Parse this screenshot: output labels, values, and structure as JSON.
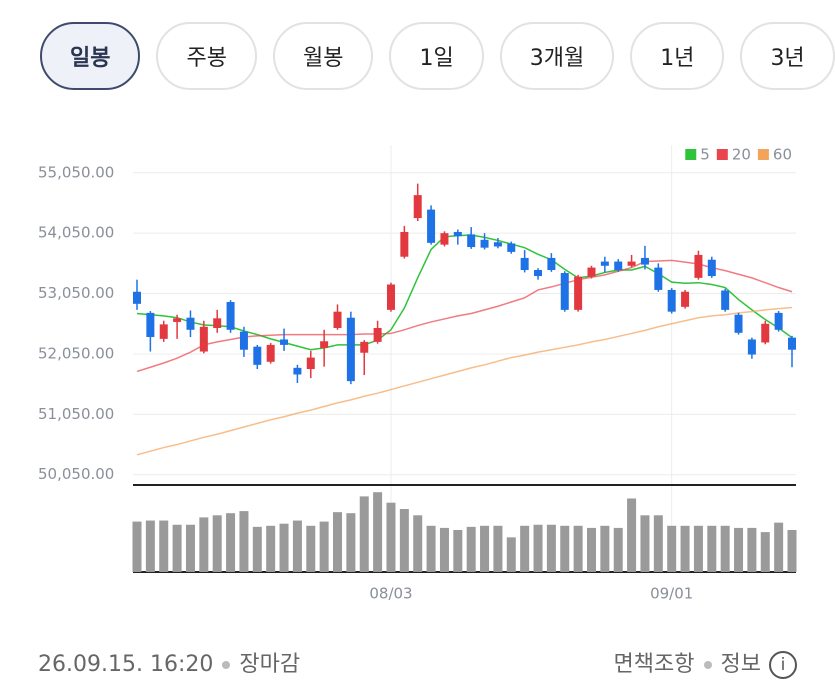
{
  "tabs": [
    {
      "label": "일봉",
      "selected": true
    },
    {
      "label": "주봉"
    },
    {
      "label": "월봉"
    },
    {
      "label": "1일"
    },
    {
      "label": "3개월"
    },
    {
      "label": "1년"
    },
    {
      "label": "3년"
    }
  ],
  "chart_data": {
    "type": "candlestick",
    "categories": [
      null,
      null,
      null,
      null,
      null,
      null,
      null,
      null,
      null,
      null,
      null,
      null,
      null,
      null,
      null,
      null,
      null,
      null,
      null,
      "08/03",
      null,
      null,
      null,
      null,
      null,
      null,
      null,
      null,
      null,
      null,
      null,
      null,
      null,
      null,
      null,
      null,
      null,
      null,
      null,
      null,
      "09/01",
      null,
      null,
      null,
      null,
      null,
      null,
      null,
      null,
      null
    ],
    "open": [
      53080,
      52730,
      52300,
      52580,
      52650,
      52090,
      52480,
      52910,
      52420,
      52170,
      51920,
      52290,
      51820,
      51800,
      52150,
      52480,
      52650,
      52070,
      52250,
      52780,
      53660,
      54300,
      54440,
      53860,
      54070,
      54030,
      53940,
      53900,
      53880,
      53640,
      53440,
      53640,
      53390,
      52780,
      53330,
      53580,
      53580,
      53510,
      53640,
      53480,
      53110,
      52830,
      53310,
      53610,
      53100,
      52700,
      52290,
      52240,
      52730,
      52320
    ],
    "high": [
      53280,
      52760,
      52600,
      52700,
      52770,
      52600,
      52780,
      52940,
      52500,
      52200,
      52230,
      52470,
      51870,
      52100,
      52450,
      52870,
      52750,
      52280,
      52600,
      53230,
      54170,
      54870,
      54510,
      54080,
      54110,
      54150,
      54050,
      53970,
      53910,
      53770,
      53470,
      53720,
      53420,
      53360,
      53510,
      53660,
      53620,
      53690,
      53840,
      53550,
      53140,
      53110,
      53760,
      53660,
      53130,
      52730,
      52320,
      52600,
      52760,
      52350
    ],
    "low": [
      52780,
      52090,
      52250,
      52300,
      52330,
      52060,
      52400,
      52400,
      52000,
      51800,
      51890,
      52100,
      51570,
      51650,
      51840,
      52450,
      51550,
      51700,
      52220,
      52750,
      53630,
      54250,
      53860,
      53830,
      53860,
      53790,
      53780,
      53800,
      53710,
      53400,
      53280,
      53410,
      52750,
      52750,
      53300,
      53400,
      53410,
      53480,
      53450,
      53080,
      52720,
      52800,
      53280,
      53310,
      52750,
      52370,
      51970,
      52210,
      52420,
      51830
    ],
    "close": [
      52880,
      52330,
      52540,
      52640,
      52450,
      52500,
      52640,
      52450,
      52120,
      51870,
      52200,
      52200,
      51710,
      51990,
      52260,
      52750,
      51600,
      52250,
      52480,
      53200,
      54070,
      54680,
      53890,
      54050,
      54000,
      53820,
      53810,
      53830,
      53740,
      53440,
      53340,
      53440,
      52780,
      53330,
      53480,
      53510,
      53440,
      53580,
      53530,
      53110,
      52750,
      53080,
      53690,
      53340,
      52780,
      52400,
      52040,
      52550,
      52450,
      52120
    ],
    "up_color": "#e2383f",
    "down_color": "#1e72e6",
    "series": [
      {
        "name": "5",
        "color": "#2fc33b",
        "values": [
          52720,
          52700,
          52680,
          52650,
          52580,
          52530,
          52520,
          52500,
          52430,
          52370,
          52300,
          52240,
          52180,
          52120,
          52150,
          52200,
          52200,
          52200,
          52280,
          52450,
          52810,
          53310,
          53780,
          53990,
          54010,
          54020,
          53980,
          53930,
          53870,
          53810,
          53700,
          53610,
          53450,
          53310,
          53340,
          53400,
          53440,
          53440,
          53500,
          53380,
          53240,
          53220,
          53230,
          53200,
          53150,
          52950,
          52780,
          52620,
          52480,
          52320
        ]
      },
      {
        "name": "20",
        "color": "#e9454c",
        "values": [
          51760,
          51830,
          51900,
          51980,
          52080,
          52200,
          52250,
          52290,
          52330,
          52350,
          52360,
          52370,
          52370,
          52370,
          52370,
          52370,
          52370,
          52380,
          52380,
          52390,
          52450,
          52520,
          52580,
          52630,
          52680,
          52720,
          52780,
          52840,
          52910,
          52980,
          53110,
          53160,
          53220,
          53280,
          53320,
          53360,
          53420,
          53480,
          53580,
          53590,
          53600,
          53570,
          53540,
          53480,
          53430,
          53370,
          53310,
          53230,
          53150,
          53080
        ]
      },
      {
        "name": "60",
        "color": "#f3a35a",
        "values": [
          50380,
          50440,
          50500,
          50550,
          50610,
          50670,
          50720,
          50780,
          50840,
          50900,
          50960,
          51010,
          51070,
          51120,
          51180,
          51240,
          51290,
          51350,
          51400,
          51460,
          51520,
          51580,
          51640,
          51700,
          51760,
          51820,
          51870,
          51930,
          51990,
          52030,
          52080,
          52120,
          52160,
          52200,
          52250,
          52290,
          52340,
          52390,
          52440,
          52500,
          52550,
          52600,
          52650,
          52680,
          52700,
          52730,
          52750,
          52780,
          52800,
          52820
        ]
      }
    ],
    "ylim": [
      49880,
      55510
    ],
    "yticks": [
      {
        "value": 55050,
        "label": "55,050.00"
      },
      {
        "value": 54050,
        "label": "54,050.00"
      },
      {
        "value": 53050,
        "label": "53,050.00"
      },
      {
        "value": 52050,
        "label": "52,050.00"
      },
      {
        "value": 51050,
        "label": "51,050.00"
      },
      {
        "value": 50050,
        "label": "50,050.00"
      }
    ],
    "grid": true,
    "volume": {
      "color": "#9a9a9a",
      "ylim": [
        0,
        80
      ],
      "values": [
        48,
        49,
        49,
        45,
        45,
        52,
        54,
        56,
        58,
        43,
        44,
        46,
        49,
        44,
        48,
        57,
        56,
        72,
        76,
        66,
        60,
        54,
        44,
        42,
        40,
        43,
        44,
        44,
        33,
        44,
        45,
        45,
        44,
        44,
        42,
        44,
        42,
        70,
        54,
        54,
        44,
        44,
        44,
        44,
        44,
        42,
        42,
        38,
        47,
        40
      ]
    }
  },
  "footer": {
    "timestamp": "26.09.15. 16:20",
    "status": "장마감",
    "disclaimer": "면책조항",
    "info": "정보"
  }
}
